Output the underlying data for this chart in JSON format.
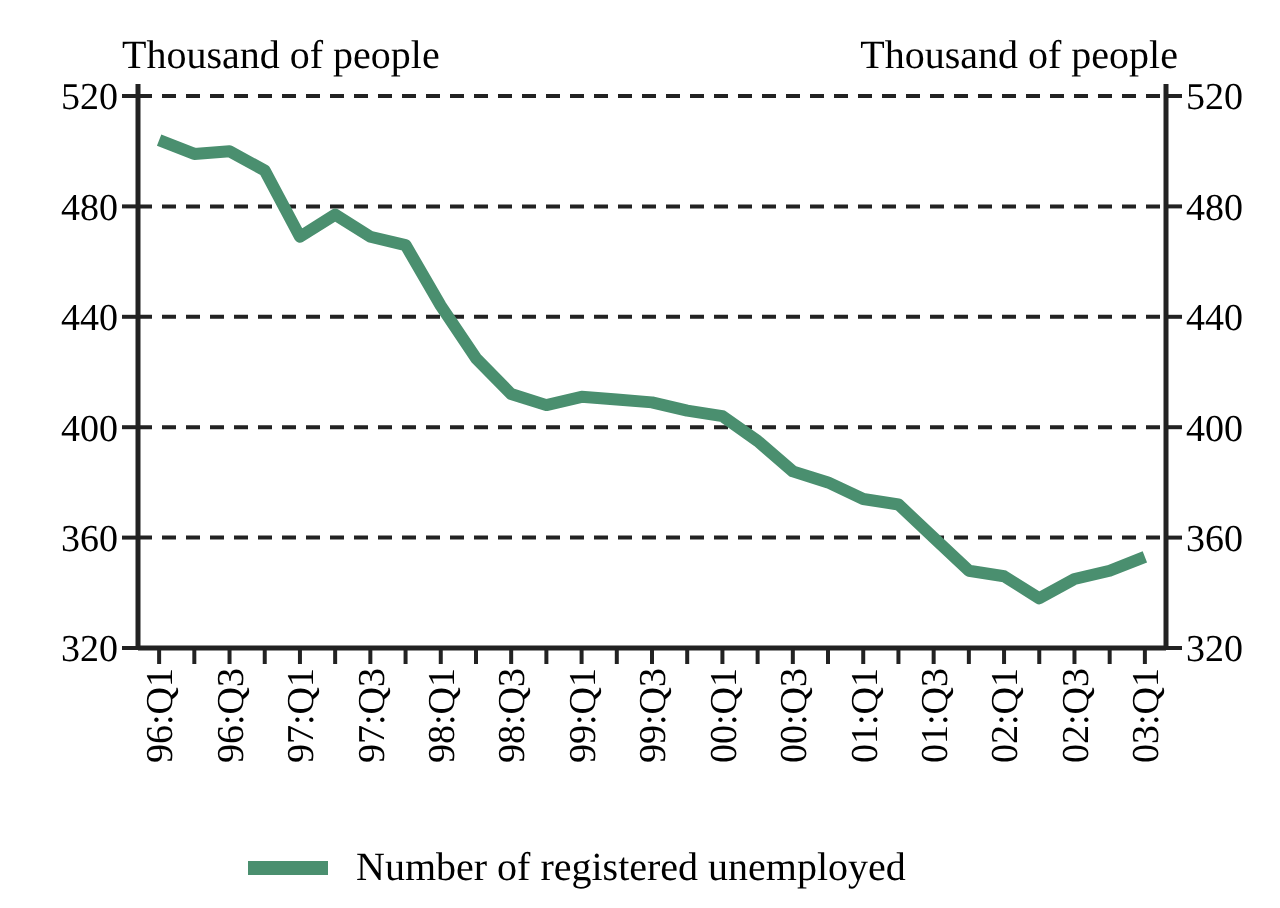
{
  "chart_data": {
    "type": "line",
    "ylabel": "Thousand of people",
    "y2label": "Thousand of people",
    "categories": [
      "96:Q1",
      null,
      "96:Q3",
      null,
      "97:Q1",
      null,
      "97:Q3",
      null,
      "98:Q1",
      null,
      "98:Q3",
      null,
      "99:Q1",
      null,
      "99:Q3",
      null,
      "00:Q1",
      null,
      "00:Q3",
      null,
      "01:Q1",
      null,
      "01:Q3",
      null,
      "02:Q1",
      null,
      "02:Q3",
      null,
      "03:Q1"
    ],
    "series": [
      {
        "name": "Number of registered unemployed",
        "color": "#4a8f6f",
        "values": [
          504,
          499,
          500,
          493,
          469,
          477,
          469,
          466,
          444,
          425,
          412,
          408,
          411,
          410,
          409,
          406,
          404,
          395,
          384,
          380,
          374,
          372,
          360,
          348,
          346,
          338,
          345,
          348,
          353
        ]
      }
    ],
    "ylim": [
      320,
      520
    ],
    "yticks": [
      320,
      360,
      400,
      440,
      480,
      520
    ],
    "y2lim": [
      320,
      520
    ],
    "y2ticks": [
      320,
      360,
      400,
      440,
      480,
      520
    ],
    "grid": "y",
    "legend": "bottom",
    "marker": "none",
    "line_style": "solid"
  }
}
